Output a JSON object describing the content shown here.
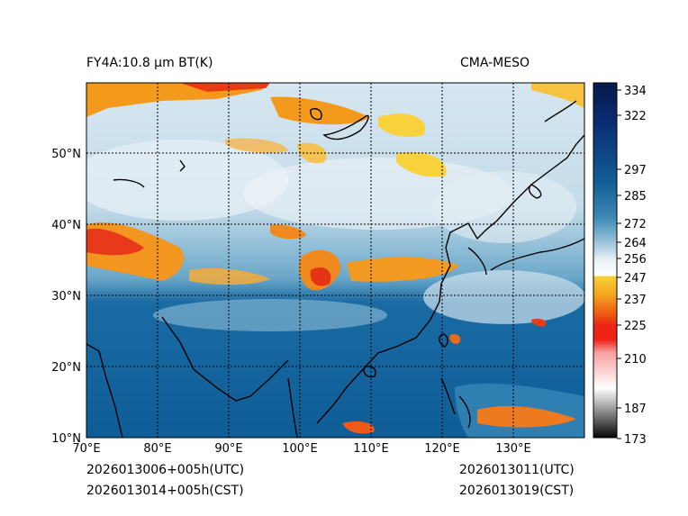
{
  "header": {
    "title_left": "FY4A:10.8 μm BT(K)",
    "title_right": "CMA-MESO"
  },
  "footer": {
    "init_utc": "2026013006+005h(UTC)",
    "init_cst": "2026013014+005h(CST)",
    "valid_utc": "2026013011(UTC)",
    "valid_cst": "2026013019(CST)"
  },
  "map": {
    "lon_labels": [
      "70°E",
      "80°E",
      "90°E",
      "100°E",
      "110°E",
      "120°E",
      "130°E"
    ],
    "lat_labels": [
      "10°N",
      "20°N",
      "30°N",
      "40°N",
      "50°N"
    ]
  },
  "colorbar": {
    "ticks": [
      "334",
      "322",
      "297",
      "285",
      "272",
      "264",
      "256",
      "247",
      "237",
      "225",
      "210",
      "187",
      "173"
    ],
    "tick_values": [
      334,
      322,
      297,
      285,
      272,
      264,
      256,
      247,
      237,
      225,
      210,
      187,
      173
    ],
    "range": [
      173,
      334
    ]
  }
}
